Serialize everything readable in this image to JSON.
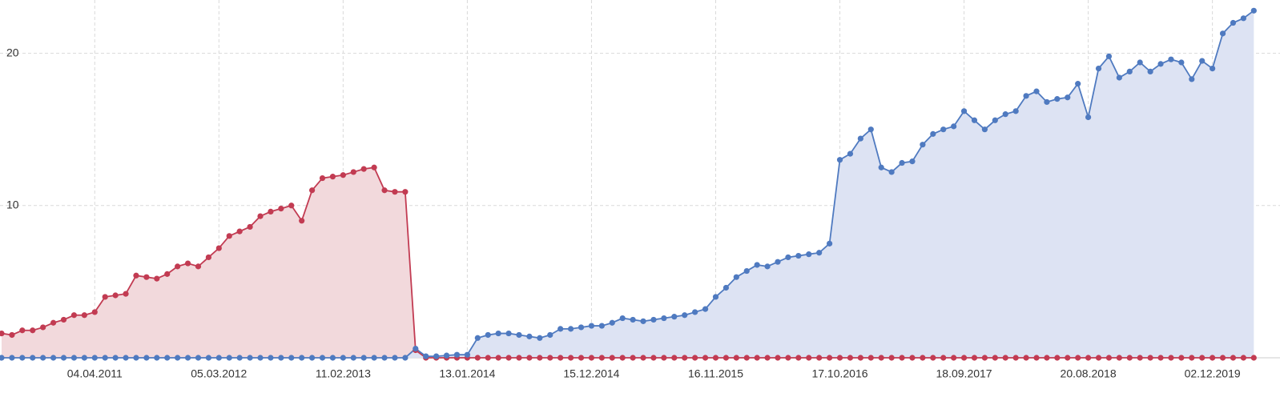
{
  "chart_data": {
    "type": "area",
    "categories": [
      null,
      null,
      null,
      null,
      null,
      null,
      null,
      null,
      null,
      "04.04.2011",
      null,
      null,
      null,
      null,
      null,
      null,
      null,
      null,
      null,
      null,
      null,
      "05.03.2012",
      null,
      null,
      null,
      null,
      null,
      null,
      null,
      null,
      null,
      null,
      null,
      "11.02.2013",
      null,
      null,
      null,
      null,
      null,
      null,
      null,
      null,
      null,
      null,
      null,
      "13.01.2014",
      null,
      null,
      null,
      null,
      null,
      null,
      null,
      null,
      null,
      null,
      null,
      "15.12.2014",
      null,
      null,
      null,
      null,
      null,
      null,
      null,
      null,
      null,
      null,
      null,
      "16.11.2015",
      null,
      null,
      null,
      null,
      null,
      null,
      null,
      null,
      null,
      null,
      null,
      "17.10.2016",
      null,
      null,
      null,
      null,
      null,
      null,
      null,
      null,
      null,
      null,
      null,
      "18.09.2017",
      null,
      null,
      null,
      null,
      null,
      null,
      null,
      null,
      null,
      null,
      null,
      "20.08.2018",
      null,
      null,
      null,
      null,
      null,
      null,
      null,
      null,
      null,
      null,
      null,
      "02.12.2019",
      null,
      null,
      null,
      null
    ],
    "series": [
      {
        "color": "#c23b52",
        "fill": "#f2d9dc",
        "values": [
          1.6,
          1.5,
          1.8,
          1.8,
          2.0,
          2.3,
          2.5,
          2.8,
          2.8,
          3.0,
          4.0,
          4.1,
          4.2,
          5.4,
          5.3,
          5.2,
          5.5,
          6.0,
          6.2,
          6.0,
          6.6,
          7.2,
          8.0,
          8.3,
          8.6,
          9.3,
          9.6,
          9.8,
          10.0,
          9.0,
          11.0,
          11.8,
          11.9,
          12.0,
          12.2,
          12.4,
          12.5,
          11.0,
          10.9,
          10.9,
          0.5,
          0,
          0,
          0,
          0,
          0,
          0,
          0,
          0,
          0,
          0,
          0,
          0,
          0,
          0,
          0,
          0,
          0,
          0,
          0,
          0,
          0,
          0,
          0,
          0,
          0,
          0,
          0,
          0,
          0,
          0,
          0,
          0,
          0,
          0,
          0,
          0,
          0,
          0,
          0,
          0,
          0,
          0,
          0,
          0,
          0,
          0,
          0,
          0,
          0,
          0,
          0,
          0,
          0,
          0,
          0,
          0,
          0,
          0,
          0,
          0,
          0,
          0,
          0,
          0,
          0,
          0,
          0,
          0,
          0,
          0,
          0,
          0,
          0,
          0,
          0,
          0,
          0,
          0,
          0,
          0,
          0
        ]
      },
      {
        "color": "#4f7ac0",
        "fill": "#dde3f3",
        "values": [
          0,
          0,
          0,
          0,
          0,
          0,
          0,
          0,
          0,
          0,
          0,
          0,
          0,
          0,
          0,
          0,
          0,
          0,
          0,
          0,
          0,
          0,
          0,
          0,
          0,
          0,
          0,
          0,
          0,
          0,
          0,
          0,
          0,
          0,
          0,
          0,
          0,
          0,
          0,
          0,
          0.6,
          0.1,
          0.1,
          0.15,
          0.2,
          0.2,
          1.3,
          1.5,
          1.6,
          1.6,
          1.5,
          1.4,
          1.3,
          1.5,
          1.9,
          1.9,
          2.0,
          2.1,
          2.1,
          2.3,
          2.6,
          2.5,
          2.4,
          2.5,
          2.6,
          2.7,
          2.8,
          3.0,
          3.2,
          4.0,
          4.6,
          5.3,
          5.7,
          6.1,
          6.0,
          6.3,
          6.6,
          6.7,
          6.8,
          6.9,
          7.5,
          13.0,
          13.4,
          14.4,
          15.0,
          12.5,
          12.2,
          12.8,
          12.9,
          14.0,
          14.7,
          15.0,
          15.2,
          16.2,
          15.6,
          15.0,
          15.6,
          16.0,
          16.2,
          17.2,
          17.5,
          16.8,
          17.0,
          17.1,
          18.0,
          15.8,
          19.0,
          19.8,
          18.4,
          18.8,
          19.4,
          18.8,
          19.3,
          19.6,
          19.4,
          18.3,
          19.5,
          19.0,
          21.3,
          22.0,
          22.3,
          22.8
        ]
      }
    ],
    "ylim": [
      0,
      23.5
    ],
    "yticks": [
      10,
      20
    ],
    "grid": true
  }
}
